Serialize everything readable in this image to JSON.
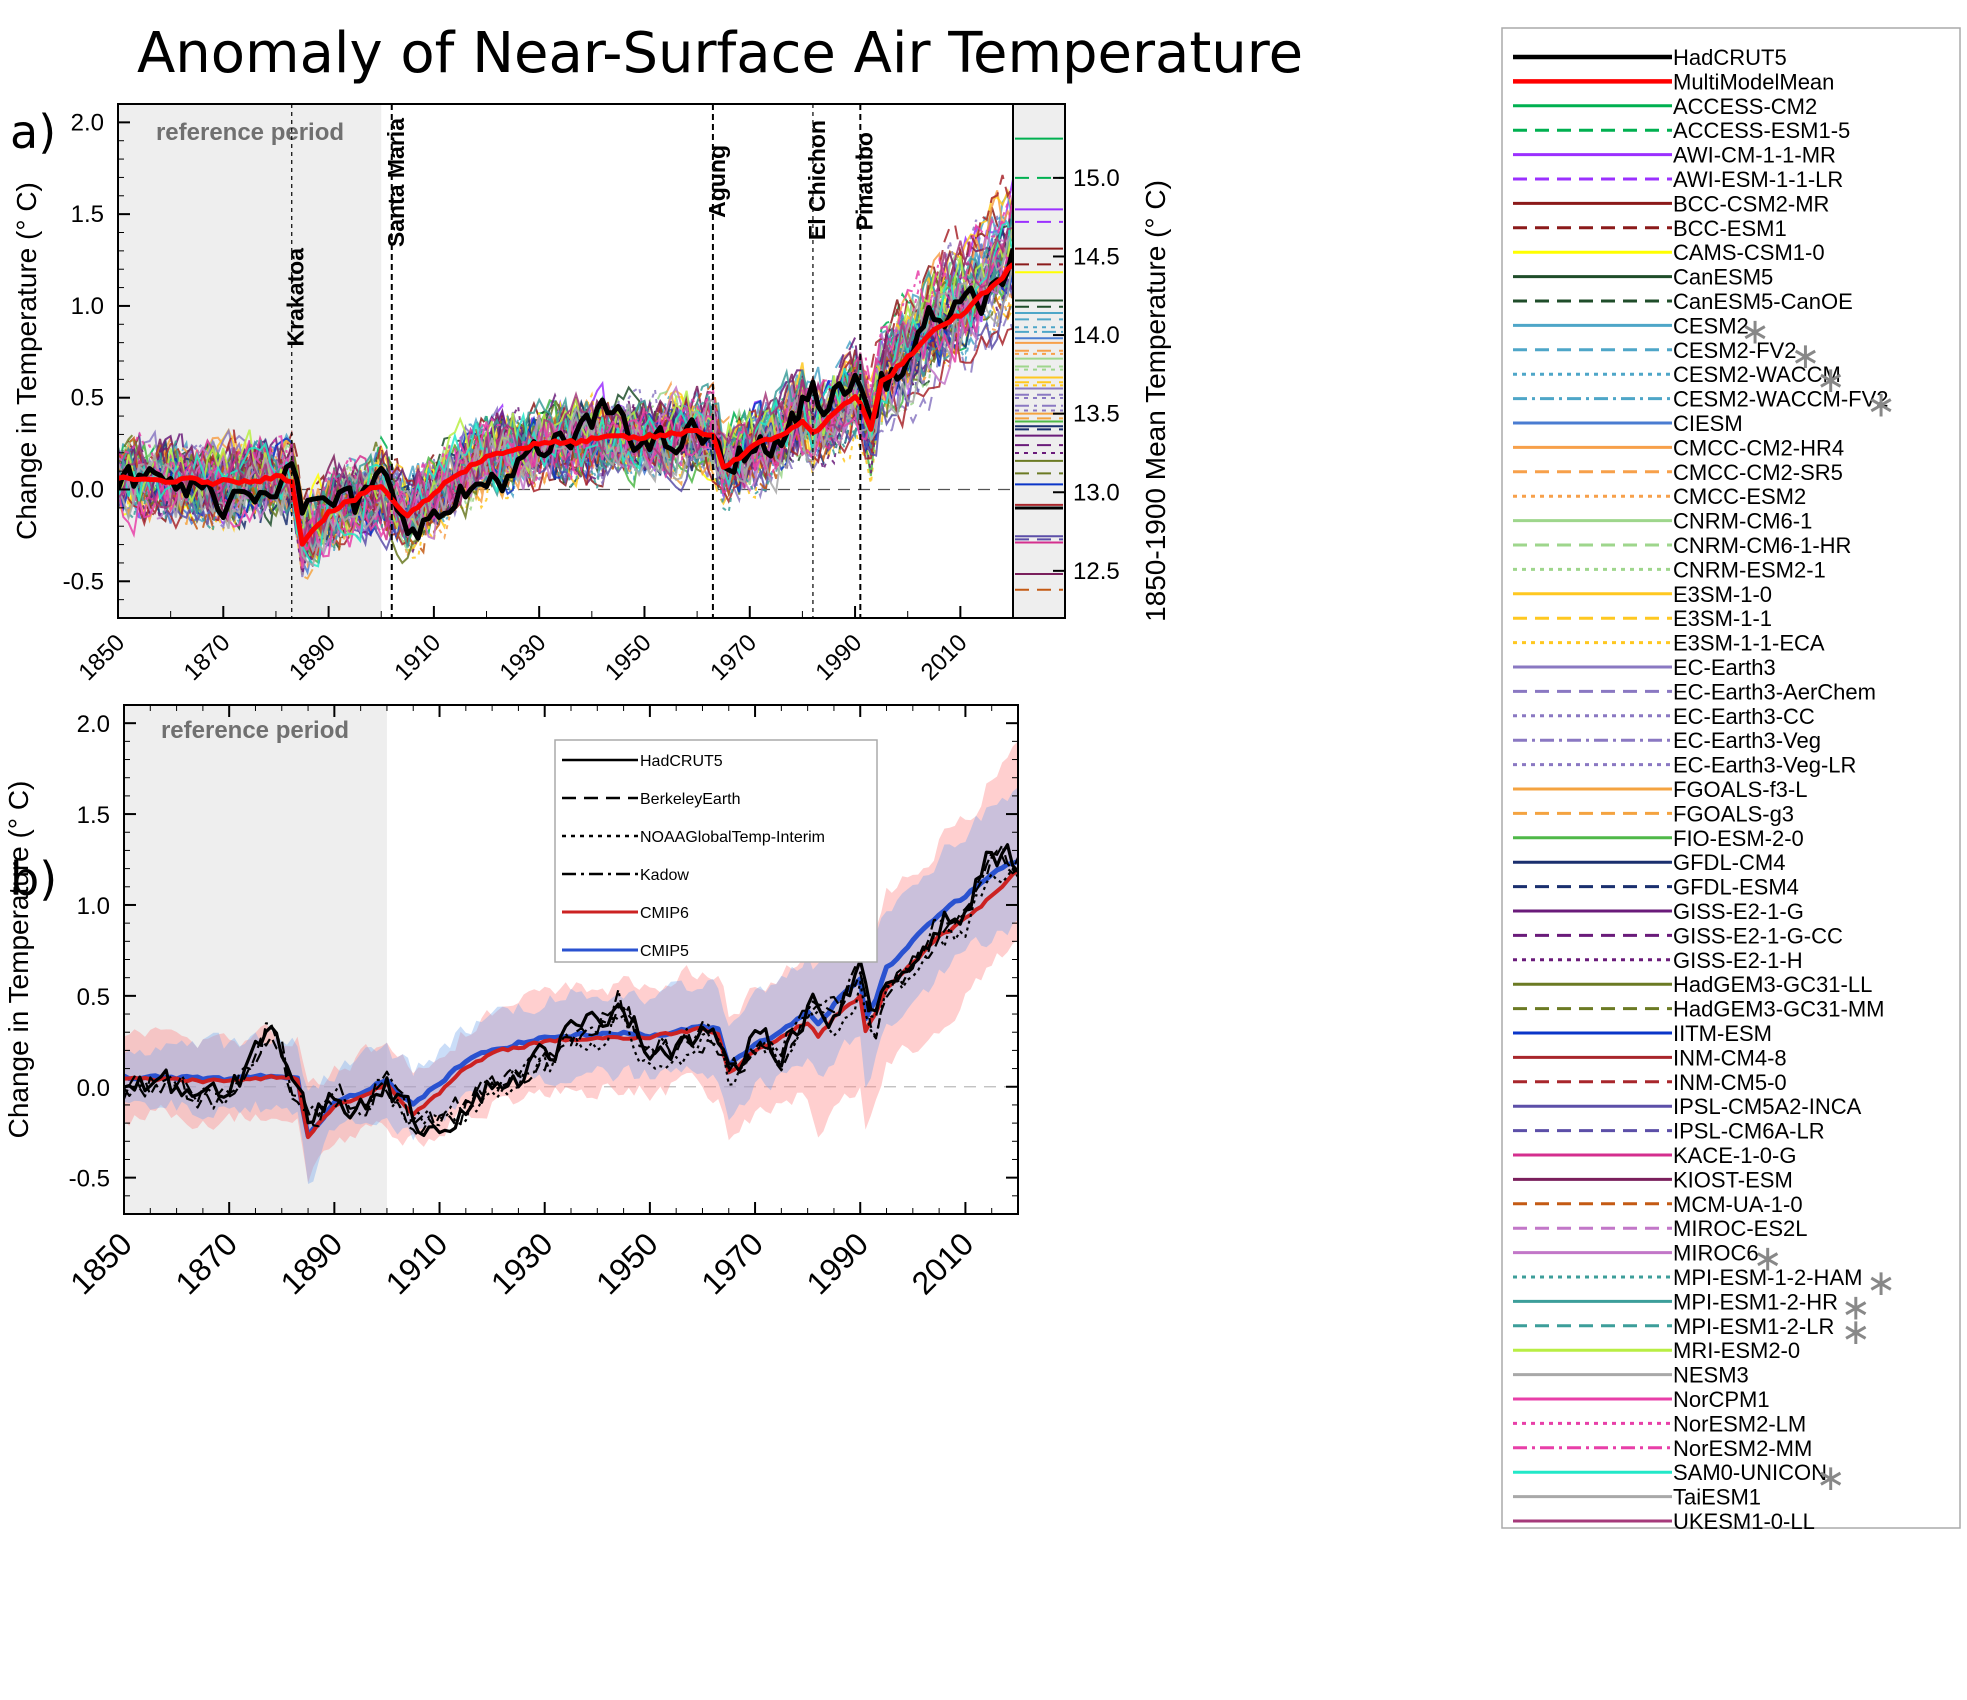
{
  "figure_title": "Anomaly of Near-Surface Air Temperature",
  "chart_data": [
    {
      "panel_label": "a)",
      "type": "line",
      "ylabel": "Change in Temperature (° C)",
      "ylabel_right": "1850-1900 Mean Temperature (° C)",
      "xlim": [
        1850,
        2020
      ],
      "ylim": [
        -0.7,
        2.1
      ],
      "ylim_right": [
        12.2,
        15.47
      ],
      "x_ticks": [
        "1850",
        "1870",
        "1890",
        "1910",
        "1930",
        "1950",
        "1970",
        "1990",
        "2010"
      ],
      "y_ticks": [
        "-0.5",
        "0.0",
        "0.5",
        "1.0",
        "1.5",
        "2.0"
      ],
      "y_ticks_right": [
        "12.5",
        "13.0",
        "13.5",
        "14.0",
        "14.5",
        "15.0"
      ],
      "reference_period": {
        "label": "reference period",
        "range": [
          1850,
          1900
        ]
      },
      "volcanoes": [
        {
          "name": "Krakatoa",
          "year": 1883
        },
        {
          "name": "Santa Maria",
          "year": 1902
        },
        {
          "name": "Agung",
          "year": 1963
        },
        {
          "name": "El Chichon",
          "year": 1982
        },
        {
          "name": "Pinatubo",
          "year": 1991
        }
      ],
      "keypoints": {
        "x": [
          1850,
          1860,
          1870,
          1880,
          1883,
          1885,
          1890,
          1895,
          1900,
          1902,
          1905,
          1910,
          1915,
          1920,
          1925,
          1930,
          1935,
          1940,
          1945,
          1950,
          1955,
          1960,
          1963,
          1965,
          1970,
          1975,
          1980,
          1982,
          1985,
          1990,
          1991,
          1993,
          1995,
          2000,
          2005,
          2010,
          2015,
          2020
        ],
        "hadcrut5": [
          0.05,
          0.03,
          -0.05,
          0.05,
          0.22,
          -0.15,
          -0.05,
          -0.1,
          0.05,
          -0.05,
          -0.15,
          -0.18,
          -0.05,
          0.05,
          0.1,
          0.18,
          0.25,
          0.35,
          0.45,
          0.22,
          0.25,
          0.3,
          0.28,
          0.08,
          0.25,
          0.22,
          0.45,
          0.55,
          0.45,
          0.62,
          0.55,
          0.35,
          0.58,
          0.7,
          0.95,
          0.95,
          1.05,
          1.25
        ],
        "multi_model_mean": [
          0.05,
          0.05,
          0.04,
          0.07,
          0.05,
          -0.28,
          -0.12,
          -0.05,
          0.02,
          -0.05,
          -0.15,
          -0.02,
          0.1,
          0.18,
          0.22,
          0.25,
          0.25,
          0.27,
          0.28,
          0.28,
          0.3,
          0.32,
          0.3,
          0.12,
          0.22,
          0.28,
          0.38,
          0.3,
          0.38,
          0.52,
          0.48,
          0.32,
          0.58,
          0.72,
          0.85,
          0.95,
          1.08,
          1.22
        ]
      },
      "right_axis_model_baselines": [
        15.25,
        15.0,
        14.8,
        14.72,
        14.55,
        14.45,
        14.4,
        14.22,
        14.18,
        14.14,
        14.1,
        14.05,
        14.02,
        13.98,
        13.95,
        13.9,
        13.88,
        13.85,
        13.8,
        13.78,
        13.73,
        13.7,
        13.68,
        13.66,
        13.62,
        13.6,
        13.55,
        13.52,
        13.5,
        13.47,
        13.45,
        13.42,
        13.4,
        13.36,
        13.3,
        13.25,
        13.2,
        13.12,
        13.05,
        12.92,
        12.9,
        12.72,
        12.7,
        12.68,
        12.48,
        12.38
      ],
      "series": [
        {
          "name": "HadCRUT5",
          "color": "#000000",
          "dash": "solid"
        },
        {
          "name": "MultiModelMean",
          "color": "#ff0000",
          "dash": "solid"
        },
        {
          "name": "ACCESS-CM2",
          "color": "#00b050",
          "dash": "solid"
        },
        {
          "name": "ACCESS-ESM1-5",
          "color": "#00b050",
          "dash": "dashed"
        },
        {
          "name": "AWI-CM-1-1-MR",
          "color": "#9b30ff",
          "dash": "solid"
        },
        {
          "name": "AWI-ESM-1-1-LR",
          "color": "#9b30ff",
          "dash": "dashed"
        },
        {
          "name": "BCC-CSM2-MR",
          "color": "#8b1a1a",
          "dash": "solid"
        },
        {
          "name": "BCC-ESM1",
          "color": "#8b1a1a",
          "dash": "dashed"
        },
        {
          "name": "CAMS-CSM1-0",
          "color": "#ffff00",
          "dash": "solid"
        },
        {
          "name": "CanESM5",
          "color": "#1f4d2a",
          "dash": "solid"
        },
        {
          "name": "CanESM5-CanOE",
          "color": "#1f4d2a",
          "dash": "dashed"
        },
        {
          "name": "CESM2",
          "color": "#4ea6c8",
          "dash": "solid",
          "star": true
        },
        {
          "name": "CESM2-FV2",
          "color": "#4ea6c8",
          "dash": "dashed",
          "star": true
        },
        {
          "name": "CESM2-WACCM",
          "color": "#4ea6c8",
          "dash": "dotted",
          "star": true
        },
        {
          "name": "CESM2-WACCM-FV2",
          "color": "#4ea6c8",
          "dash": "dashdot",
          "star": true
        },
        {
          "name": "CIESM",
          "color": "#4a7cd1",
          "dash": "solid"
        },
        {
          "name": "CMCC-CM2-HR4",
          "color": "#f7a04a",
          "dash": "solid"
        },
        {
          "name": "CMCC-CM2-SR5",
          "color": "#f7a04a",
          "dash": "dashed"
        },
        {
          "name": "CMCC-ESM2",
          "color": "#f7a04a",
          "dash": "dotted"
        },
        {
          "name": "CNRM-CM6-1",
          "color": "#9ed68c",
          "dash": "solid"
        },
        {
          "name": "CNRM-CM6-1-HR",
          "color": "#9ed68c",
          "dash": "dashed"
        },
        {
          "name": "CNRM-ESM2-1",
          "color": "#9ed68c",
          "dash": "dotted"
        },
        {
          "name": "E3SM-1-0",
          "color": "#ffc820",
          "dash": "solid"
        },
        {
          "name": "E3SM-1-1",
          "color": "#ffc820",
          "dash": "dashed"
        },
        {
          "name": "E3SM-1-1-ECA",
          "color": "#ffc820",
          "dash": "dotted"
        },
        {
          "name": "EC-Earth3",
          "color": "#8a78c2",
          "dash": "solid"
        },
        {
          "name": "EC-Earth3-AerChem",
          "color": "#8a78c2",
          "dash": "dashed"
        },
        {
          "name": "EC-Earth3-CC",
          "color": "#8a78c2",
          "dash": "dotted"
        },
        {
          "name": "EC-Earth3-Veg",
          "color": "#8a78c2",
          "dash": "dashdot"
        },
        {
          "name": "EC-Earth3-Veg-LR",
          "color": "#8a78c2",
          "dash": "dotted"
        },
        {
          "name": "FGOALS-f3-L",
          "color": "#f4a340",
          "dash": "solid"
        },
        {
          "name": "FGOALS-g3",
          "color": "#f4a340",
          "dash": "dashed"
        },
        {
          "name": "FIO-ESM-2-0",
          "color": "#4fb848",
          "dash": "solid"
        },
        {
          "name": "GFDL-CM4",
          "color": "#1a2f6e",
          "dash": "solid"
        },
        {
          "name": "GFDL-ESM4",
          "color": "#1a2f6e",
          "dash": "dashed"
        },
        {
          "name": "GISS-E2-1-G",
          "color": "#6a1b7a",
          "dash": "solid"
        },
        {
          "name": "GISS-E2-1-G-CC",
          "color": "#6a1b7a",
          "dash": "dashed"
        },
        {
          "name": "GISS-E2-1-H",
          "color": "#6a1b7a",
          "dash": "dotted"
        },
        {
          "name": "HadGEM3-GC31-LL",
          "color": "#6b7a23",
          "dash": "solid"
        },
        {
          "name": "HadGEM3-GC31-MM",
          "color": "#6b7a23",
          "dash": "dashed"
        },
        {
          "name": "IITM-ESM",
          "color": "#0a35c8",
          "dash": "solid"
        },
        {
          "name": "INM-CM4-8",
          "color": "#a8262b",
          "dash": "solid"
        },
        {
          "name": "INM-CM5-0",
          "color": "#a8262b",
          "dash": "dashed"
        },
        {
          "name": "IPSL-CM5A2-INCA",
          "color": "#5c4fa8",
          "dash": "solid"
        },
        {
          "name": "IPSL-CM6A-LR",
          "color": "#5c4fa8",
          "dash": "dashed"
        },
        {
          "name": "KACE-1-0-G",
          "color": "#d42f8e",
          "dash": "solid"
        },
        {
          "name": "KIOST-ESM",
          "color": "#7a1f5c",
          "dash": "solid"
        },
        {
          "name": "MCM-UA-1-0",
          "color": "#c45a14",
          "dash": "dashed"
        },
        {
          "name": "MIROC-ES2L",
          "color": "#c277c8",
          "dash": "dashed"
        },
        {
          "name": "MIROC6",
          "color": "#c277c8",
          "dash": "solid",
          "star": true
        },
        {
          "name": "MPI-ESM-1-2-HAM",
          "color": "#3c9e9a",
          "dash": "dotted",
          "star": true
        },
        {
          "name": "MPI-ESM1-2-HR",
          "color": "#3c9e9a",
          "dash": "solid",
          "star": true
        },
        {
          "name": "MPI-ESM1-2-LR",
          "color": "#3c9e9a",
          "dash": "dashed",
          "star": true
        },
        {
          "name": "MRI-ESM2-0",
          "color": "#b8ee44",
          "dash": "solid"
        },
        {
          "name": "NESM3",
          "color": "#a8a8a8",
          "dash": "solid"
        },
        {
          "name": "NorCPM1",
          "color": "#e83fa8",
          "dash": "solid"
        },
        {
          "name": "NorESM2-LM",
          "color": "#e83fa8",
          "dash": "dotted"
        },
        {
          "name": "NorESM2-MM",
          "color": "#e83fa8",
          "dash": "dashdot"
        },
        {
          "name": "SAM0-UNICON",
          "color": "#22e8c8",
          "dash": "solid",
          "star": true
        },
        {
          "name": "TaiESM1",
          "color": "#a8a8a8",
          "dash": "solid"
        },
        {
          "name": "UKESM1-0-LL",
          "color": "#a53a7a",
          "dash": "solid"
        }
      ]
    },
    {
      "panel_label": "b)",
      "type": "line",
      "ylabel": "Change in Temperature (° C)",
      "xlim": [
        1850,
        2020
      ],
      "ylim": [
        -0.7,
        2.1
      ],
      "x_ticks": [
        "1850",
        "1870",
        "1890",
        "1910",
        "1930",
        "1950",
        "1970",
        "1990",
        "2010"
      ],
      "y_ticks": [
        "-0.5",
        "0.0",
        "0.5",
        "1.0",
        "1.5",
        "2.0"
      ],
      "reference_period": {
        "label": "reference period",
        "range": [
          1850,
          1900
        ]
      },
      "keypoints": {
        "x": [
          1850,
          1860,
          1870,
          1878,
          1883,
          1885,
          1890,
          1895,
          1900,
          1902,
          1905,
          1910,
          1915,
          1920,
          1925,
          1930,
          1935,
          1940,
          1944,
          1950,
          1955,
          1960,
          1963,
          1965,
          1970,
          1975,
          1980,
          1982,
          1985,
          1990,
          1991,
          1993,
          1995,
          2000,
          2005,
          2010,
          2015,
          2020
        ],
        "cmip6_mean": [
          0.04,
          0.04,
          0.03,
          0.05,
          0.04,
          -0.28,
          -0.1,
          -0.06,
          0.02,
          -0.06,
          -0.14,
          -0.03,
          0.1,
          0.18,
          0.22,
          0.25,
          0.26,
          0.27,
          0.27,
          0.27,
          0.3,
          0.32,
          0.3,
          0.08,
          0.2,
          0.27,
          0.36,
          0.28,
          0.38,
          0.5,
          0.3,
          0.4,
          0.55,
          0.68,
          0.82,
          0.92,
          1.05,
          1.2
        ],
        "cmip6_low": [
          -0.15,
          -0.15,
          -0.18,
          -0.14,
          -0.15,
          -0.5,
          -0.28,
          -0.25,
          -0.18,
          -0.28,
          -0.32,
          -0.25,
          -0.15,
          -0.08,
          -0.05,
          -0.05,
          -0.02,
          -0.01,
          0.0,
          -0.02,
          0.0,
          0.03,
          -0.1,
          -0.3,
          -0.15,
          -0.1,
          -0.05,
          -0.25,
          -0.1,
          0.0,
          -0.2,
          -0.1,
          0.1,
          0.2,
          0.35,
          0.5,
          0.65,
          0.8
        ],
        "cmip6_high": [
          0.25,
          0.28,
          0.25,
          0.28,
          0.26,
          0.0,
          0.12,
          0.18,
          0.24,
          0.18,
          0.1,
          0.2,
          0.32,
          0.4,
          0.45,
          0.5,
          0.52,
          0.55,
          0.56,
          0.55,
          0.6,
          0.62,
          0.58,
          0.4,
          0.55,
          0.62,
          0.75,
          0.7,
          0.8,
          0.98,
          0.8,
          0.88,
          1.05,
          1.15,
          1.35,
          1.45,
          1.7,
          1.85
        ],
        "cmip5_mean": [
          0.05,
          0.05,
          0.04,
          0.06,
          0.04,
          -0.28,
          -0.08,
          -0.03,
          0.05,
          -0.04,
          -0.1,
          0.02,
          0.14,
          0.2,
          0.24,
          0.27,
          0.28,
          0.29,
          0.3,
          0.28,
          0.3,
          0.33,
          0.32,
          0.12,
          0.24,
          0.3,
          0.42,
          0.35,
          0.45,
          0.6,
          0.38,
          0.48,
          0.65,
          0.8,
          0.95,
          1.05,
          1.18,
          1.25
        ],
        "cmip5_low": [
          -0.12,
          -0.12,
          -0.14,
          -0.1,
          -0.12,
          -0.55,
          -0.22,
          -0.2,
          -0.12,
          -0.25,
          -0.28,
          -0.18,
          -0.08,
          -0.02,
          0.02,
          0.04,
          0.05,
          0.06,
          0.07,
          0.05,
          0.06,
          0.08,
          0.06,
          -0.12,
          0.0,
          0.06,
          0.16,
          0.05,
          0.18,
          0.3,
          0.05,
          0.18,
          0.35,
          0.5,
          0.62,
          0.72,
          0.85,
          0.92
        ],
        "cmip5_high": [
          0.22,
          0.24,
          0.22,
          0.25,
          0.22,
          0.0,
          0.1,
          0.16,
          0.22,
          0.15,
          0.08,
          0.2,
          0.32,
          0.4,
          0.44,
          0.48,
          0.5,
          0.52,
          0.52,
          0.5,
          0.54,
          0.58,
          0.56,
          0.36,
          0.5,
          0.56,
          0.7,
          0.65,
          0.74,
          0.9,
          0.7,
          0.82,
          0.98,
          1.1,
          1.28,
          1.38,
          1.55,
          1.65
        ],
        "hadcrut5": [
          0.02,
          0.0,
          -0.08,
          0.38,
          -0.05,
          -0.18,
          -0.05,
          -0.12,
          0.06,
          -0.08,
          -0.18,
          -0.2,
          -0.1,
          0.02,
          0.05,
          0.18,
          0.3,
          0.35,
          0.5,
          0.2,
          0.25,
          0.3,
          0.28,
          0.05,
          0.25,
          0.2,
          0.45,
          0.45,
          0.4,
          0.62,
          0.5,
          0.35,
          0.55,
          0.68,
          0.92,
          0.95,
          1.3,
          1.25
        ],
        "berkeley_earth": [
          0.0,
          -0.02,
          -0.1,
          0.3,
          -0.08,
          -0.2,
          -0.08,
          -0.15,
          0.02,
          -0.1,
          -0.2,
          -0.22,
          -0.12,
          0.0,
          0.05,
          0.16,
          0.28,
          0.32,
          0.45,
          0.18,
          0.22,
          0.28,
          0.25,
          0.03,
          0.22,
          0.18,
          0.42,
          0.4,
          0.38,
          0.6,
          0.45,
          0.3,
          0.52,
          0.65,
          0.88,
          0.92,
          1.25,
          1.22
        ],
        "noaa_interim": [
          null,
          null,
          null,
          null,
          null,
          null,
          null,
          null,
          -0.05,
          -0.12,
          -0.22,
          -0.25,
          -0.15,
          -0.02,
          0.0,
          0.1,
          0.22,
          0.28,
          0.38,
          0.1,
          0.15,
          0.22,
          0.2,
          0.0,
          0.18,
          0.15,
          0.38,
          0.35,
          0.35,
          0.55,
          0.4,
          0.28,
          0.48,
          0.6,
          0.82,
          0.88,
          1.18,
          1.18
        ],
        "kadow": [
          0.02,
          0.0,
          -0.06,
          0.36,
          -0.04,
          -0.16,
          -0.04,
          -0.1,
          0.05,
          -0.06,
          -0.16,
          -0.18,
          -0.08,
          0.04,
          0.06,
          0.18,
          0.3,
          0.34,
          0.48,
          0.2,
          0.24,
          0.3,
          0.27,
          0.05,
          0.24,
          0.2,
          0.44,
          0.44,
          0.4,
          0.62,
          0.48,
          0.34,
          0.55,
          0.68,
          0.9,
          0.95,
          1.28,
          1.25
        ]
      },
      "legend": [
        {
          "name": "HadCRUT5",
          "color": "#000000",
          "dash": "solid"
        },
        {
          "name": "BerkeleyEarth",
          "color": "#000000",
          "dash": "dashed"
        },
        {
          "name": "NOAAGlobalTemp-Interim",
          "color": "#000000",
          "dash": "dotted"
        },
        {
          "name": "Kadow",
          "color": "#000000",
          "dash": "dashdot"
        },
        {
          "name": "CMIP6",
          "color": "#cc2222",
          "dash": "solid"
        },
        {
          "name": "CMIP5",
          "color": "#2a52d0",
          "dash": "solid"
        }
      ]
    }
  ]
}
